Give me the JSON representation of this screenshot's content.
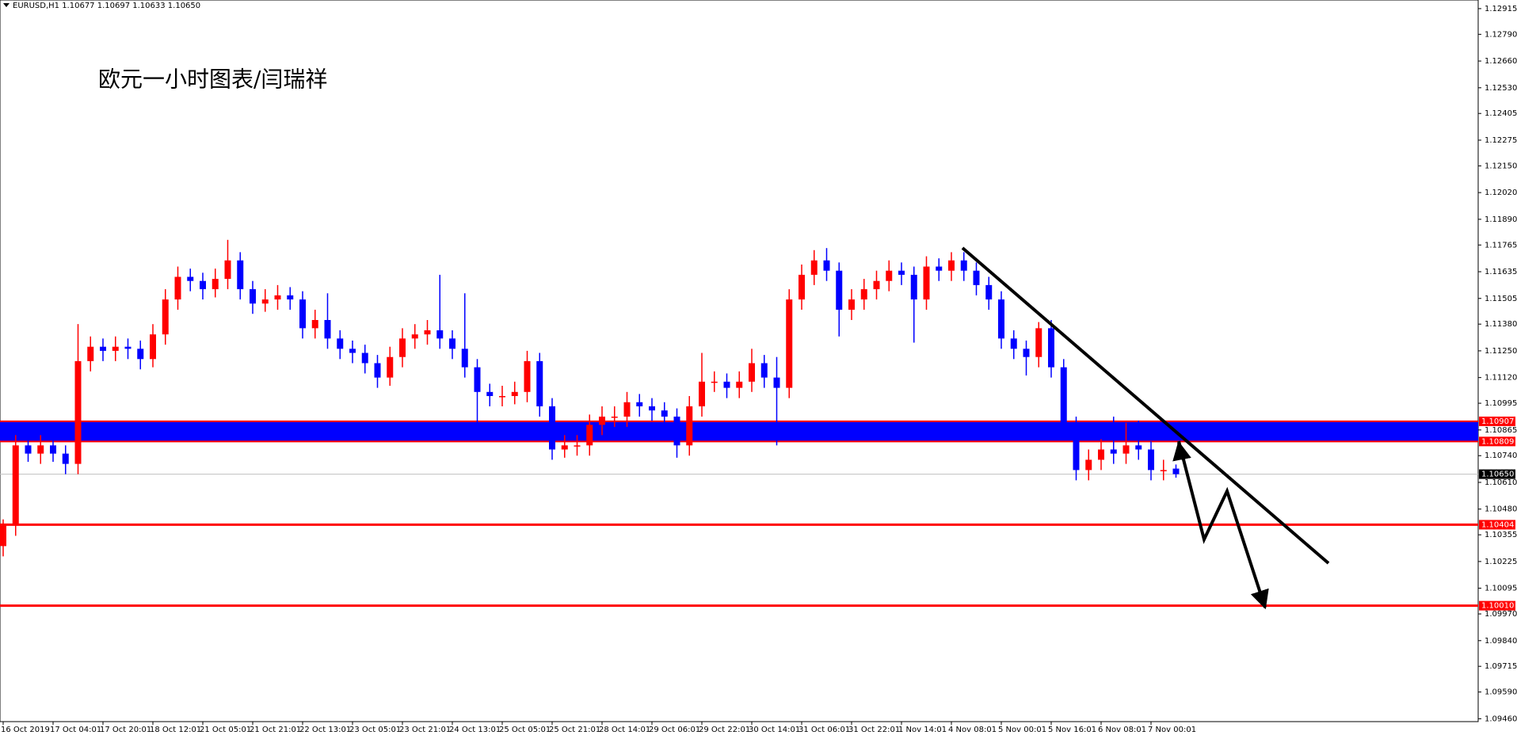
{
  "chart_data": {
    "type": "candlestick",
    "header": "EURUSD,H1  1.10677 1.10697 1.10633 1.10650",
    "title": "欧元一小时图表/闫瑞祥",
    "categories": [
      "16 Oct 2019",
      "17 Oct 04:01",
      "17 Oct 20:01",
      "18 Oct 12:01",
      "21 Oct 05:01",
      "21 Oct 21:01",
      "22 Oct 13:01",
      "23 Oct 05:01",
      "23 Oct 21:01",
      "24 Oct 13:01",
      "25 Oct 05:01",
      "25 Oct 21:01",
      "28 Oct 14:01",
      "29 Oct 06:01",
      "29 Oct 22:01",
      "30 Oct 14:01",
      "31 Oct 06:01",
      "31 Oct 22:01",
      "1 Nov 14:01",
      "4 Nov 08:01",
      "5 Nov 00:01",
      "5 Nov 16:01",
      "6 Nov 08:01",
      "7 Nov 00:01"
    ],
    "open": [
      1.103,
      1.104,
      1.1079,
      1.1075,
      1.1079,
      1.1075,
      1.107,
      1.112,
      1.1127,
      1.1125,
      1.1127,
      1.1126,
      1.1121,
      1.1133,
      1.115,
      1.1161,
      1.1159,
      1.1155,
      1.116,
      1.1169,
      1.1155,
      1.1148,
      1.115,
      1.1152,
      1.115,
      1.1136,
      1.114,
      1.1131,
      1.1126,
      1.1124,
      1.1119,
      1.1112,
      1.1122,
      1.1131,
      1.1133,
      1.1135,
      1.1131,
      1.1126,
      1.1117,
      1.1105,
      1.1103,
      1.1103,
      1.1105,
      1.112,
      1.1098,
      1.1077,
      1.1079,
      1.1079,
      1.1089,
      1.1093,
      1.1093,
      1.11,
      1.1098,
      1.1096,
      1.1093,
      1.1079,
      1.1098,
      1.111,
      1.111,
      1.1107,
      1.111,
      1.1119,
      1.1112,
      1.1107,
      1.115,
      1.1162,
      1.1169,
      1.1164,
      1.1145,
      1.115,
      1.1155,
      1.1159,
      1.1164,
      1.1162,
      1.115,
      1.1166,
      1.1164,
      1.1169,
      1.1164,
      1.1157,
      1.115,
      1.1131,
      1.1126,
      1.1122,
      1.1136,
      1.1117,
      1.1089,
      1.1067,
      1.1072,
      1.1077,
      1.1075,
      1.1079,
      1.1077,
      1.1067,
      1.10677
    ],
    "high": [
      1.1043,
      1.1084,
      1.1083,
      1.1084,
      1.1083,
      1.1079,
      1.1138,
      1.1132,
      1.1131,
      1.1132,
      1.1131,
      1.113,
      1.1138,
      1.1155,
      1.1166,
      1.1165,
      1.1163,
      1.1165,
      1.1179,
      1.1173,
      1.1159,
      1.1155,
      1.1157,
      1.1156,
      1.1154,
      1.1145,
      1.1153,
      1.1135,
      1.113,
      1.1128,
      1.1123,
      1.1127,
      1.1136,
      1.1138,
      1.114,
      1.1162,
      1.1135,
      1.1153,
      1.1121,
      1.1109,
      1.1108,
      1.111,
      1.1125,
      1.1124,
      1.1102,
      1.1084,
      1.1084,
      1.1094,
      1.1098,
      1.1098,
      1.1105,
      1.1104,
      1.1102,
      1.11,
      1.1097,
      1.1103,
      1.1124,
      1.1115,
      1.1114,
      1.1115,
      1.1126,
      1.1123,
      1.1122,
      1.1155,
      1.1167,
      1.1174,
      1.1175,
      1.1168,
      1.1155,
      1.116,
      1.1164,
      1.1169,
      1.1168,
      1.1166,
      1.1171,
      1.117,
      1.1173,
      1.1173,
      1.1168,
      1.1161,
      1.1154,
      1.1135,
      1.113,
      1.1139,
      1.114,
      1.1121,
      1.1093,
      1.1077,
      1.1082,
      1.1093,
      1.109,
      1.1091,
      1.1081,
      1.1072,
      1.10697
    ],
    "low": [
      1.1025,
      1.1035,
      1.1071,
      1.107,
      1.1071,
      1.1065,
      1.1065,
      1.1115,
      1.112,
      1.112,
      1.1121,
      1.1116,
      1.1117,
      1.1128,
      1.1145,
      1.1154,
      1.115,
      1.1151,
      1.1155,
      1.115,
      1.1143,
      1.1144,
      1.1145,
      1.1145,
      1.1131,
      1.1131,
      1.1126,
      1.1121,
      1.1119,
      1.1114,
      1.1107,
      1.1108,
      1.1117,
      1.1126,
      1.1128,
      1.1126,
      1.1121,
      1.1112,
      1.109,
      1.1098,
      1.1098,
      1.1099,
      1.11,
      1.1093,
      1.1072,
      1.1073,
      1.1074,
      1.1074,
      1.1084,
      1.1088,
      1.1088,
      1.1093,
      1.1091,
      1.1088,
      1.1073,
      1.1074,
      1.1093,
      1.1105,
      1.1102,
      1.1102,
      1.1105,
      1.1107,
      1.1079,
      1.1102,
      1.1145,
      1.1157,
      1.1159,
      1.1132,
      1.114,
      1.1145,
      1.115,
      1.1154,
      1.1157,
      1.1129,
      1.1145,
      1.1159,
      1.1159,
      1.1159,
      1.1152,
      1.1145,
      1.1126,
      1.1121,
      1.1113,
      1.1117,
      1.1112,
      1.1084,
      1.1062,
      1.1062,
      1.1067,
      1.107,
      1.107,
      1.1072,
      1.1062,
      1.1062,
      1.10633
    ],
    "close": [
      1.104,
      1.1079,
      1.1075,
      1.1079,
      1.1075,
      1.107,
      1.112,
      1.1127,
      1.1125,
      1.1127,
      1.1126,
      1.1121,
      1.1133,
      1.115,
      1.1161,
      1.1159,
      1.1155,
      1.116,
      1.1169,
      1.1155,
      1.1148,
      1.115,
      1.1152,
      1.115,
      1.1136,
      1.114,
      1.1131,
      1.1126,
      1.1124,
      1.1119,
      1.1112,
      1.1122,
      1.1131,
      1.1133,
      1.1135,
      1.1131,
      1.1126,
      1.1117,
      1.1105,
      1.1103,
      1.1103,
      1.1105,
      1.112,
      1.1098,
      1.1077,
      1.1079,
      1.1079,
      1.1089,
      1.1093,
      1.1093,
      1.11,
      1.1098,
      1.1096,
      1.1093,
      1.1079,
      1.1098,
      1.111,
      1.111,
      1.1107,
      1.111,
      1.1119,
      1.1112,
      1.1107,
      1.115,
      1.1162,
      1.1169,
      1.1164,
      1.1145,
      1.115,
      1.1155,
      1.1159,
      1.1164,
      1.1162,
      1.115,
      1.1166,
      1.1164,
      1.1169,
      1.1164,
      1.1157,
      1.115,
      1.1131,
      1.1126,
      1.1122,
      1.1136,
      1.1117,
      1.1089,
      1.1067,
      1.1072,
      1.1077,
      1.1075,
      1.1079,
      1.1077,
      1.1067,
      1.1067,
      1.1065
    ],
    "up_color": "#ff0000",
    "down_color": "#0000ff",
    "band": [
      1.10809,
      1.10907
    ],
    "band_color": "#0000ff",
    "levels": [
      1.10404,
      {
        "value": 1.1001,
        "label": "1.10010"
      }
    ],
    "level_color": "#ff0000",
    "last_price": {
      "value": 1.1065,
      "label": "1.10650"
    },
    "ylim": [
      1.09446,
      1.12957
    ],
    "yticks": [
      1.12915,
      {
        "value": 1.1279,
        "label": "1.12790"
      },
      {
        "value": 1.1266,
        "label": "1.12660"
      },
      {
        "value": 1.1253,
        "label": "1.12530"
      },
      1.12405,
      1.12275,
      {
        "value": 1.1215,
        "label": "1.12150"
      },
      {
        "value": 1.1202,
        "label": "1.12020"
      },
      {
        "value": 1.1189,
        "label": "1.11890"
      },
      1.11765,
      1.11635,
      1.11505,
      {
        "value": 1.1138,
        "label": "1.11380"
      },
      {
        "value": 1.1125,
        "label": "1.11250"
      },
      {
        "value": 1.1112,
        "label": "1.11120"
      },
      1.10995,
      1.10865,
      {
        "value": 1.1074,
        "label": "1.10740"
      },
      {
        "value": 1.1061,
        "label": "1.10610"
      },
      {
        "value": 1.1048,
        "label": "1.10480"
      },
      1.10355,
      1.10225,
      1.10095,
      {
        "value": 1.0997,
        "label": "1.09970"
      },
      {
        "value": 1.0984,
        "label": "1.09840"
      },
      1.09715,
      {
        "value": 1.0959,
        "label": "1.09590"
      },
      {
        "value": 1.0946,
        "label": "1.09460"
      }
    ],
    "grid": false
  }
}
